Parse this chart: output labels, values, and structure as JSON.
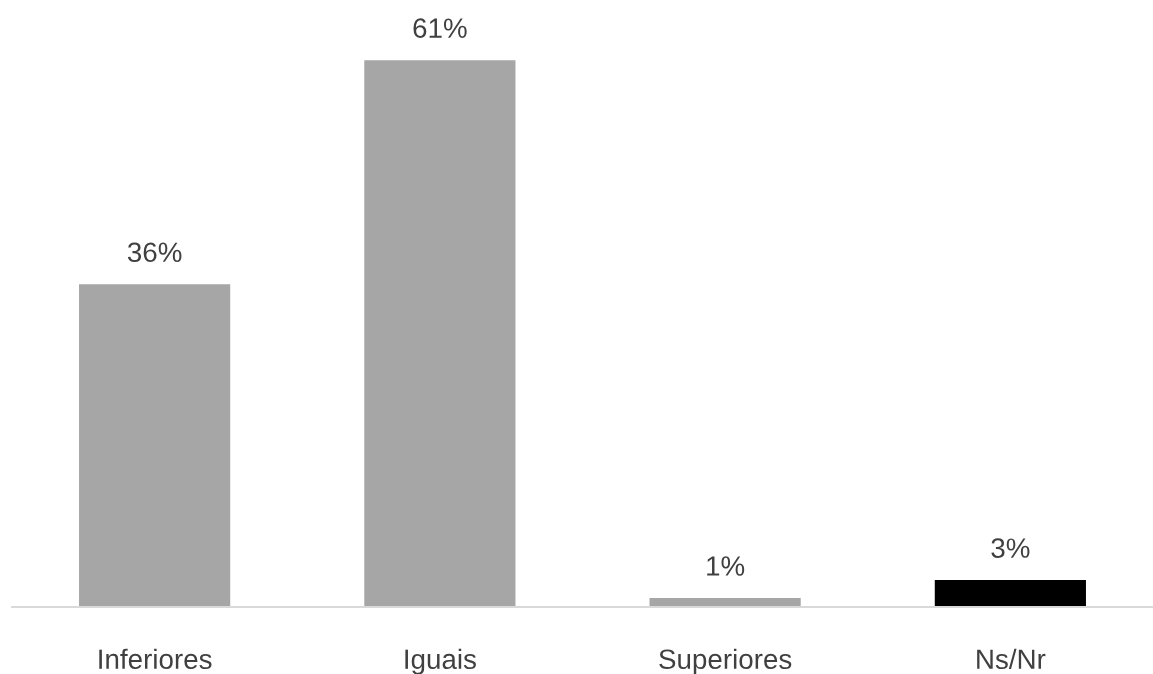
{
  "chart_data": {
    "type": "bar",
    "categories": [
      "Inferiores",
      "Iguais",
      "Superiores",
      "Ns/Nr"
    ],
    "values": [
      36,
      61,
      1,
      3
    ],
    "colors": [
      "#a6a6a6",
      "#a6a6a6",
      "#a6a6a6",
      "#000000"
    ],
    "value_labels": [
      "36%",
      "61%",
      "1%",
      "3%"
    ],
    "grid": false,
    "tick_labels": "x"
  }
}
